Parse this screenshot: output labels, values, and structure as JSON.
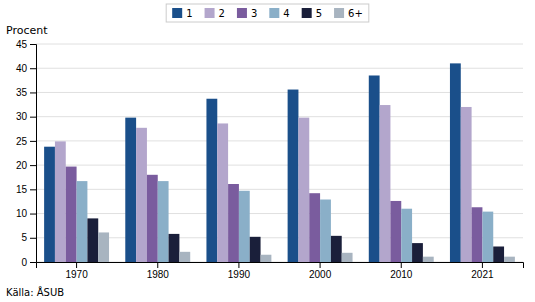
{
  "chart_data": {
    "type": "bar",
    "ylabel": "Procent",
    "annotations": [
      "Källa: ÅSUB"
    ],
    "categories": [
      "1970",
      "1980",
      "1990",
      "2000",
      "2010",
      "2021"
    ],
    "series": [
      {
        "name": "1",
        "color": "#1a4f8a",
        "values": [
          23.8,
          29.8,
          33.7,
          35.6,
          38.5,
          41.0
        ]
      },
      {
        "name": "2",
        "color": "#b3a6cc",
        "values": [
          24.9,
          27.7,
          28.6,
          29.8,
          32.4,
          32.0
        ]
      },
      {
        "name": "3",
        "color": "#7a5c9e",
        "values": [
          19.7,
          18.0,
          16.1,
          14.2,
          12.6,
          11.3
        ]
      },
      {
        "name": "4",
        "color": "#8aafc8",
        "values": [
          16.7,
          16.7,
          14.7,
          12.9,
          11.0,
          10.4
        ]
      },
      {
        "name": "5",
        "color": "#1a1f3a",
        "values": [
          9.0,
          5.8,
          5.2,
          5.4,
          3.9,
          3.2
        ]
      },
      {
        "name": "6+",
        "color": "#a8b4c0",
        "values": [
          6.1,
          2.1,
          1.5,
          1.9,
          1.1,
          1.1
        ]
      }
    ],
    "ylim": [
      0,
      45
    ],
    "yticks": [
      0,
      5,
      10,
      15,
      20,
      25,
      30,
      35,
      40,
      45
    ],
    "grid": true,
    "legend": "top"
  }
}
